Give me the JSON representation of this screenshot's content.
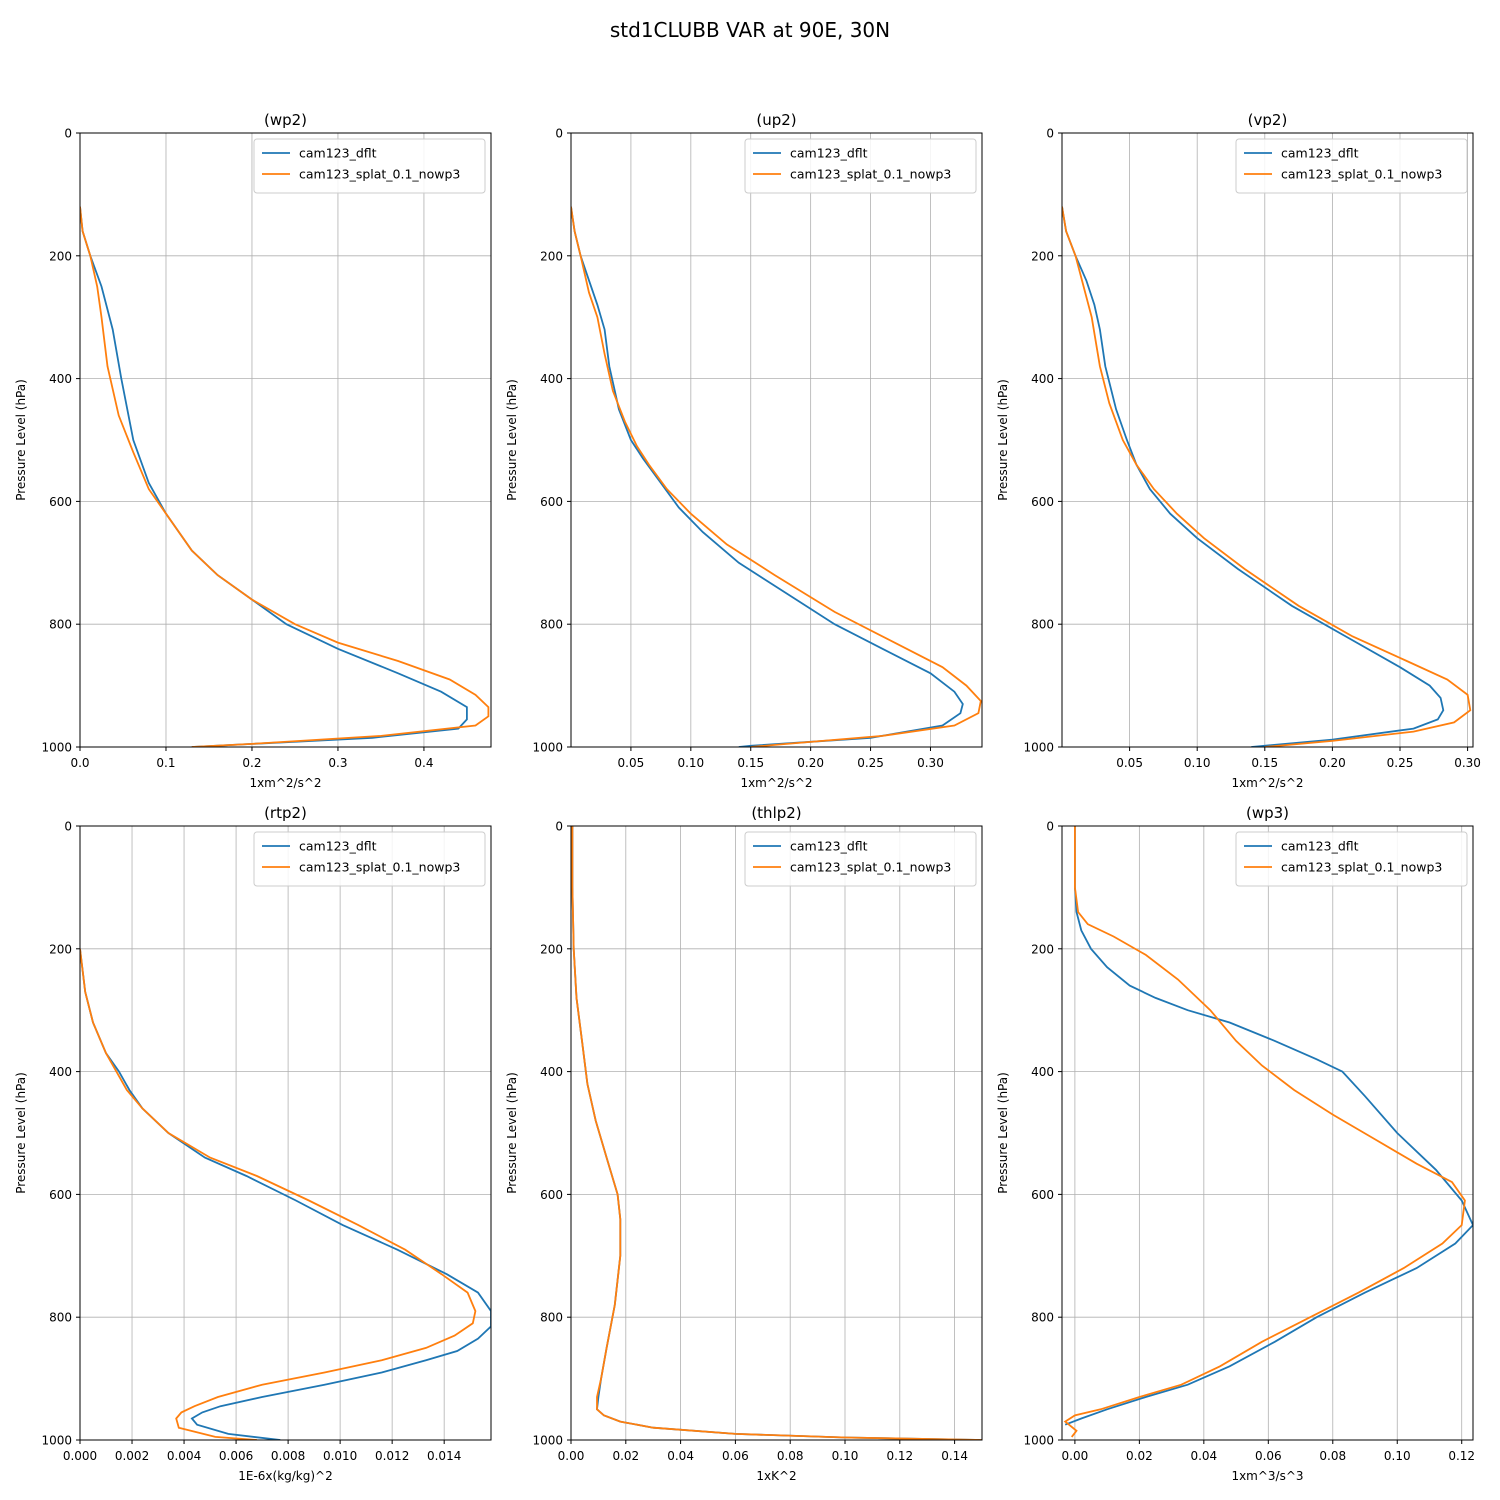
{
  "figure": {
    "title": "std1CLUBB VAR at 90E, 30N"
  },
  "colors": {
    "cam123_dflt": "#1f77b4",
    "cam123_splat_0.1_nowp3": "#ff7f0e",
    "grid": "#b0b0b0"
  },
  "chart_data": [
    {
      "type": "line",
      "title": "(wp2)",
      "xlabel": "1xm^2/s^2",
      "ylabel": "Pressure Level (hPa)",
      "xlim": [
        0,
        0.478
      ],
      "ylim": [
        1000,
        0
      ],
      "xticks": [
        0,
        0.1,
        0.2,
        0.3,
        0.4
      ],
      "xticklabels": [
        "0.0",
        "0.1",
        "0.2",
        "0.3",
        "0.4"
      ],
      "yticks": [
        0,
        200,
        400,
        600,
        800,
        1000
      ],
      "grid": true,
      "legend": "top-right",
      "series": [
        {
          "name": "cam123_dflt",
          "x": [
            0,
            0.003,
            0.012,
            0.025,
            0.038,
            0.048,
            0.062,
            0.08,
            0.1,
            0.13,
            0.16,
            0.2,
            0.24,
            0.3,
            0.37,
            0.42,
            0.45,
            0.45,
            0.44,
            0.34,
            0.2,
            0.13
          ],
          "y": [
            120,
            160,
            200,
            250,
            320,
            400,
            500,
            570,
            620,
            680,
            720,
            760,
            800,
            840,
            880,
            910,
            935,
            955,
            970,
            985,
            995,
            1000
          ]
        },
        {
          "name": "cam123_splat_0.1_nowp3",
          "x": [
            0,
            0.003,
            0.012,
            0.02,
            0.025,
            0.032,
            0.045,
            0.062,
            0.08,
            0.1,
            0.13,
            0.16,
            0.2,
            0.25,
            0.3,
            0.37,
            0.43,
            0.46,
            0.475,
            0.475,
            0.46,
            0.35,
            0.2,
            0.13
          ],
          "y": [
            120,
            160,
            200,
            250,
            300,
            380,
            460,
            520,
            580,
            620,
            680,
            720,
            760,
            800,
            830,
            860,
            890,
            915,
            935,
            950,
            965,
            982,
            995,
            1000
          ]
        }
      ]
    },
    {
      "type": "line",
      "title": "(up2)",
      "xlabel": "1xm^2/s^2",
      "ylabel": "Pressure Level (hPa)",
      "xlim": [
        0,
        0.343
      ],
      "ylim": [
        1000,
        0
      ],
      "xticks": [
        0.05,
        0.1,
        0.15,
        0.2,
        0.25,
        0.3
      ],
      "xticklabels": [
        "0.05",
        "0.10",
        "0.15",
        "0.20",
        "0.25",
        "0.30"
      ],
      "yticks": [
        0,
        200,
        400,
        600,
        800,
        1000
      ],
      "grid": true,
      "legend": "top-right",
      "series": [
        {
          "name": "cam123_dflt",
          "x": [
            0,
            0.003,
            0.008,
            0.015,
            0.022,
            0.028,
            0.032,
            0.04,
            0.05,
            0.06,
            0.075,
            0.09,
            0.11,
            0.14,
            0.18,
            0.22,
            0.26,
            0.3,
            0.32,
            0.327,
            0.325,
            0.31,
            0.25,
            0.15,
            0.14
          ],
          "y": [
            120,
            160,
            200,
            240,
            280,
            320,
            380,
            450,
            500,
            530,
            570,
            610,
            650,
            700,
            750,
            800,
            840,
            880,
            910,
            930,
            945,
            965,
            985,
            998,
            1000
          ]
        },
        {
          "name": "cam123_splat_0.1_nowp3",
          "x": [
            0,
            0.003,
            0.008,
            0.015,
            0.022,
            0.028,
            0.035,
            0.045,
            0.055,
            0.065,
            0.08,
            0.1,
            0.13,
            0.17,
            0.22,
            0.27,
            0.31,
            0.33,
            0.342,
            0.34,
            0.32,
            0.26,
            0.18,
            0.15
          ],
          "y": [
            120,
            160,
            200,
            260,
            300,
            360,
            420,
            470,
            510,
            540,
            580,
            620,
            670,
            720,
            780,
            830,
            870,
            900,
            925,
            945,
            965,
            982,
            995,
            1000
          ]
        }
      ]
    },
    {
      "type": "line",
      "title": "(vp2)",
      "xlabel": "1xm^2/s^2",
      "ylabel": "Pressure Level (hPa)",
      "xlim": [
        0,
        0.304
      ],
      "ylim": [
        1000,
        0
      ],
      "xticks": [
        0.05,
        0.1,
        0.15,
        0.2,
        0.25,
        0.3
      ],
      "xticklabels": [
        "0.05",
        "0.10",
        "0.15",
        "0.20",
        "0.25",
        "0.30"
      ],
      "yticks": [
        0,
        200,
        400,
        600,
        800,
        1000
      ],
      "grid": true,
      "legend": "top-right",
      "series": [
        {
          "name": "cam123_dflt",
          "x": [
            0,
            0.003,
            0.01,
            0.018,
            0.024,
            0.028,
            0.032,
            0.04,
            0.048,
            0.055,
            0.065,
            0.08,
            0.1,
            0.13,
            0.17,
            0.21,
            0.25,
            0.272,
            0.28,
            0.282,
            0.278,
            0.26,
            0.2,
            0.14
          ],
          "y": [
            120,
            160,
            200,
            240,
            280,
            320,
            380,
            450,
            500,
            540,
            580,
            620,
            660,
            710,
            770,
            820,
            870,
            900,
            920,
            940,
            955,
            970,
            988,
            1000
          ]
        },
        {
          "name": "cam123_splat_0.1_nowp3",
          "x": [
            0,
            0.003,
            0.01,
            0.016,
            0.022,
            0.028,
            0.035,
            0.045,
            0.055,
            0.068,
            0.085,
            0.105,
            0.135,
            0.175,
            0.215,
            0.255,
            0.285,
            0.3,
            0.302,
            0.29,
            0.26,
            0.2,
            0.15
          ],
          "y": [
            120,
            160,
            200,
            250,
            300,
            380,
            440,
            500,
            540,
            580,
            620,
            660,
            710,
            770,
            820,
            860,
            890,
            915,
            940,
            960,
            975,
            990,
            1000
          ]
        }
      ]
    },
    {
      "type": "line",
      "title": "(rtp2)",
      "xlabel": "1E-6x(kg/kg)^2",
      "ylabel": "Pressure Level (hPa)",
      "xlim": [
        0,
        0.0158
      ],
      "ylim": [
        1000,
        0
      ],
      "xticks": [
        0,
        0.002,
        0.004,
        0.006,
        0.008,
        0.01,
        0.012,
        0.014
      ],
      "xticklabels": [
        "0.000",
        "0.002",
        "0.004",
        "0.006",
        "0.008",
        "0.010",
        "0.012",
        "0.014"
      ],
      "yticks": [
        0,
        200,
        400,
        600,
        800,
        1000
      ],
      "grid": true,
      "legend": "top-right",
      "series": [
        {
          "name": "cam123_dflt",
          "x": [
            0,
            0.0002,
            0.0005,
            0.001,
            0.0015,
            0.0019,
            0.0024,
            0.0034,
            0.0048,
            0.0064,
            0.0083,
            0.0101,
            0.0122,
            0.0141,
            0.0153,
            0.0158,
            0.0158,
            0.0153,
            0.0145,
            0.0133,
            0.0116,
            0.0094,
            0.007,
            0.0054,
            0.0047,
            0.0043,
            0.0045,
            0.0057,
            0.0077
          ],
          "y": [
            200,
            270,
            320,
            370,
            400,
            430,
            460,
            500,
            540,
            570,
            610,
            650,
            690,
            730,
            760,
            790,
            815,
            835,
            855,
            870,
            890,
            910,
            930,
            945,
            955,
            965,
            975,
            990,
            1000
          ]
        },
        {
          "name": "cam123_splat_0.1_nowp3",
          "x": [
            0,
            0.0002,
            0.0005,
            0.001,
            0.0014,
            0.0018,
            0.0024,
            0.0034,
            0.005,
            0.0068,
            0.0088,
            0.0107,
            0.0125,
            0.0139,
            0.0149,
            0.0152,
            0.0151,
            0.0144,
            0.0133,
            0.0116,
            0.0094,
            0.007,
            0.0053,
            0.0044,
            0.0039,
            0.0037,
            0.0038,
            0.0052,
            0.0068
          ],
          "y": [
            200,
            270,
            320,
            370,
            400,
            430,
            460,
            500,
            540,
            570,
            610,
            650,
            690,
            730,
            760,
            790,
            810,
            830,
            850,
            870,
            890,
            910,
            930,
            945,
            955,
            965,
            980,
            995,
            1000
          ]
        }
      ]
    },
    {
      "type": "line",
      "title": "(thlp2)",
      "xlabel": "1xK^2",
      "ylabel": "Pressure Level (hPa)",
      "xlim": [
        0,
        0.15
      ],
      "ylim": [
        1000,
        0
      ],
      "xticks": [
        0,
        0.02,
        0.04,
        0.06,
        0.08,
        0.1,
        0.12,
        0.14
      ],
      "xticklabels": [
        "0.00",
        "0.02",
        "0.04",
        "0.06",
        "0.08",
        "0.10",
        "0.12",
        "0.14"
      ],
      "yticks": [
        0,
        200,
        400,
        600,
        800,
        1000
      ],
      "grid": true,
      "legend": "top-right",
      "series": [
        {
          "name": "cam123_dflt",
          "x": [
            0.0005,
            0.0005,
            0.001,
            0.002,
            0.004,
            0.006,
            0.009,
            0.013,
            0.017,
            0.018,
            0.018,
            0.016,
            0.013,
            0.011,
            0.01,
            0.0095,
            0.012,
            0.018,
            0.03,
            0.06,
            0.1,
            0.15
          ],
          "y": [
            0,
            100,
            200,
            280,
            350,
            420,
            480,
            540,
            600,
            640,
            700,
            780,
            850,
            900,
            930,
            950,
            960,
            970,
            980,
            990,
            996,
            1000
          ]
        },
        {
          "name": "cam123_splat_0.1_nowp3",
          "x": [
            0.0005,
            0.0005,
            0.001,
            0.002,
            0.004,
            0.006,
            0.009,
            0.013,
            0.017,
            0.018,
            0.018,
            0.016,
            0.013,
            0.011,
            0.0095,
            0.0095,
            0.012,
            0.018,
            0.03,
            0.06,
            0.1,
            0.15
          ],
          "y": [
            0,
            100,
            200,
            280,
            350,
            420,
            480,
            540,
            600,
            640,
            700,
            780,
            850,
            900,
            930,
            950,
            960,
            970,
            980,
            990,
            996,
            1000
          ]
        }
      ]
    },
    {
      "type": "line",
      "title": "(wp3)",
      "xlabel": "1xm^3/s^3",
      "ylabel": "Pressure Level (hPa)",
      "xlim": [
        -0.004,
        0.1235
      ],
      "ylim": [
        1000,
        0
      ],
      "xticks": [
        0,
        0.02,
        0.04,
        0.06,
        0.08,
        0.1,
        0.12
      ],
      "xticklabels": [
        "0.00",
        "0.02",
        "0.04",
        "0.06",
        "0.08",
        "0.10",
        "0.12"
      ],
      "yticks": [
        0,
        200,
        400,
        600,
        800,
        1000
      ],
      "grid": true,
      "legend": "top-right",
      "series": [
        {
          "name": "cam123_dflt",
          "x": [
            0,
            0,
            0.0005,
            0.002,
            0.005,
            0.01,
            0.017,
            0.025,
            0.035,
            0.048,
            0.062,
            0.075,
            0.083,
            0.09,
            0.1,
            0.112,
            0.12,
            0.1235,
            0.118,
            0.106,
            0.09,
            0.075,
            0.062,
            0.048,
            0.035,
            0.022,
            0.01,
            0.002,
            -0.003
          ],
          "y": [
            0,
            100,
            140,
            170,
            200,
            230,
            260,
            280,
            300,
            320,
            350,
            380,
            400,
            440,
            500,
            560,
            610,
            650,
            680,
            720,
            760,
            800,
            840,
            880,
            910,
            930,
            950,
            965,
            975
          ]
        },
        {
          "name": "cam123_splat_0.1_nowp3",
          "x": [
            0,
            0,
            0.001,
            0.004,
            0.012,
            0.022,
            0.032,
            0.042,
            0.05,
            0.058,
            0.068,
            0.08,
            0.093,
            0.106,
            0.117,
            0.121,
            0.12,
            0.114,
            0.102,
            0.088,
            0.073,
            0.058,
            0.045,
            0.033,
            0.02,
            0.008,
            0,
            -0.003,
            0.0005,
            -0.001
          ],
          "y": [
            0,
            100,
            140,
            160,
            180,
            210,
            250,
            300,
            350,
            390,
            430,
            470,
            510,
            550,
            580,
            610,
            650,
            680,
            720,
            760,
            800,
            840,
            880,
            910,
            930,
            950,
            960,
            970,
            985,
            995
          ]
        }
      ]
    }
  ]
}
